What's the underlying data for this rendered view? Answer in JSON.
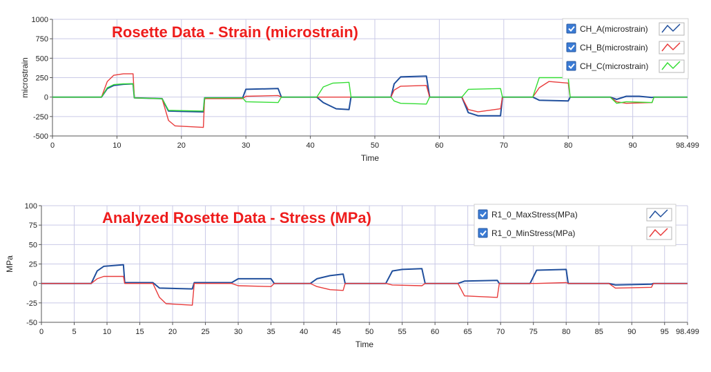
{
  "chart_data": [
    {
      "type": "line",
      "title": "Rosette Data -  Strain (microstrain)",
      "xlabel": "Time",
      "ylabel": "microstrain",
      "xlim": [
        0,
        98.499
      ],
      "ylim": [
        -500,
        1000
      ],
      "xticks": [
        "0",
        "10",
        "20",
        "30",
        "40",
        "50",
        "60",
        "70",
        "80",
        "90",
        "98.499"
      ],
      "xtick_values": [
        0,
        10,
        20,
        30,
        40,
        50,
        60,
        70,
        80,
        90,
        98.499
      ],
      "yticks": [
        "1000",
        "750",
        "500",
        "250",
        "0",
        "-250",
        "-500"
      ],
      "ytick_values": [
        1000,
        750,
        500,
        250,
        0,
        -250,
        -500
      ],
      "grid": true,
      "legend_position": "top-right",
      "series": [
        {
          "name": "CH_A(microstrain)",
          "color": "#1f4e9c",
          "checked": true,
          "x": [
            0,
            7.6,
            8.5,
            9.5,
            11,
            12.5,
            12.7,
            17,
            18,
            23.4,
            23.6,
            29.5,
            30,
            35,
            35.5,
            41,
            42,
            44,
            46,
            46.3,
            52.5,
            53,
            54,
            58,
            58.5,
            63.5,
            64.5,
            66,
            69.5,
            69.8,
            74.5,
            75.5,
            80,
            80.3,
            86.5,
            87.5,
            89,
            91,
            93,
            93.3,
            98.499
          ],
          "y": [
            0,
            0,
            110,
            150,
            165,
            170,
            -10,
            -20,
            -180,
            -190,
            -10,
            -10,
            100,
            110,
            0,
            0,
            -70,
            -150,
            -160,
            0,
            0,
            170,
            260,
            270,
            0,
            0,
            -200,
            -240,
            -240,
            0,
            0,
            -40,
            -50,
            0,
            0,
            -30,
            10,
            10,
            -5,
            0,
            0
          ]
        },
        {
          "name": "CH_B(microstrain)",
          "color": "#e83a3a",
          "checked": true,
          "x": [
            0,
            7.6,
            8.5,
            9.5,
            11,
            12.5,
            12.7,
            17,
            18,
            19,
            23.4,
            23.6,
            29.5,
            30,
            35,
            35.5,
            41,
            46,
            46.3,
            52.5,
            53,
            54,
            58,
            58.5,
            63.5,
            64.5,
            66,
            69.5,
            69.8,
            74.5,
            75.5,
            77,
            80,
            80.3,
            86.5,
            87.5,
            89,
            93,
            93.3,
            98.499
          ],
          "y": [
            0,
            0,
            200,
            280,
            300,
            300,
            -10,
            -20,
            -300,
            -370,
            -390,
            -20,
            -20,
            10,
            20,
            0,
            0,
            0,
            0,
            0,
            90,
            140,
            150,
            0,
            0,
            -160,
            -190,
            -150,
            0,
            0,
            120,
            200,
            180,
            0,
            0,
            -60,
            -80,
            -70,
            0,
            0
          ]
        },
        {
          "name": "CH_C(microstrain)",
          "color": "#33dd33",
          "checked": true,
          "x": [
            0,
            7.6,
            8.5,
            9.5,
            11,
            12.5,
            12.7,
            17,
            18,
            23.4,
            23.6,
            29.5,
            30,
            35,
            35.5,
            41,
            42,
            43.5,
            46,
            46.3,
            52.5,
            53,
            54,
            58,
            58.5,
            63.5,
            64.5,
            69.5,
            69.8,
            74.5,
            75.5,
            80,
            80.3,
            86.5,
            87.5,
            89,
            93,
            93.3,
            98.499
          ],
          "y": [
            0,
            0,
            120,
            160,
            170,
            170,
            -10,
            -20,
            -170,
            -180,
            -10,
            -10,
            -60,
            -70,
            0,
            0,
            130,
            180,
            190,
            0,
            0,
            -50,
            -80,
            -90,
            0,
            0,
            100,
            110,
            0,
            0,
            250,
            250,
            0,
            0,
            -80,
            -60,
            -70,
            0,
            0
          ]
        }
      ]
    },
    {
      "type": "line",
      "title": "Analyzed Rosette Data - Stress (MPa)",
      "xlabel": "Time",
      "ylabel": "MPa",
      "xlim": [
        0,
        98.499
      ],
      "ylim": [
        -50,
        100
      ],
      "xticks": [
        "0",
        "5",
        "10",
        "15",
        "20",
        "25",
        "30",
        "35",
        "40",
        "45",
        "50",
        "55",
        "60",
        "65",
        "70",
        "75",
        "80",
        "85",
        "90",
        "95",
        "98.499"
      ],
      "xtick_values": [
        0,
        5,
        10,
        15,
        20,
        25,
        30,
        35,
        40,
        45,
        50,
        55,
        60,
        65,
        70,
        75,
        80,
        85,
        90,
        95,
        98.499
      ],
      "yticks": [
        "100",
        "75",
        "50",
        "25",
        "0",
        "-25",
        "-50"
      ],
      "ytick_values": [
        100,
        75,
        50,
        25,
        0,
        -25,
        -50
      ],
      "grid": true,
      "legend_position": "top-right",
      "series": [
        {
          "name": "R1_0_MaxStress(MPa)",
          "color": "#1f4e9c",
          "checked": true,
          "x": [
            0,
            7.6,
            8.5,
            9.5,
            12.5,
            12.7,
            17,
            18,
            23,
            23.3,
            29,
            30,
            35,
            35.5,
            41,
            42,
            44,
            46,
            46.3,
            52.5,
            53.5,
            55,
            58,
            58.5,
            63.5,
            64.5,
            69.5,
            69.8,
            74.5,
            75.5,
            80,
            80.3,
            86.5,
            87.5,
            93,
            93.3,
            98.499
          ],
          "y": [
            0,
            0,
            16,
            22,
            24,
            1,
            1,
            -6,
            -7,
            1,
            1,
            6,
            6,
            0,
            0,
            6,
            10,
            12,
            0,
            0,
            16,
            18,
            19,
            0,
            0,
            3,
            4,
            0,
            0,
            17,
            18,
            0,
            0,
            -2,
            -1,
            0,
            0
          ]
        },
        {
          "name": "R1_0_MinStress(MPa)",
          "color": "#e83a3a",
          "checked": true,
          "x": [
            0,
            7.6,
            8.5,
            9.5,
            12.5,
            12.7,
            17,
            18,
            19,
            23,
            23.3,
            29,
            30,
            35,
            35.5,
            41,
            42,
            44,
            46,
            46.3,
            52.5,
            53.5,
            58,
            58.5,
            63.5,
            64.5,
            69.5,
            69.8,
            74.5,
            75.5,
            80,
            80.3,
            86.5,
            87.5,
            93,
            93.3,
            98.499
          ],
          "y": [
            0,
            0,
            6,
            9,
            9,
            0,
            0,
            -18,
            -26,
            -28,
            0,
            0,
            -3,
            -4,
            0,
            0,
            -4,
            -8,
            -9,
            0,
            0,
            -2,
            -3,
            0,
            0,
            -16,
            -18,
            0,
            0,
            0,
            1,
            0,
            0,
            -6,
            -5,
            0,
            0
          ]
        }
      ]
    }
  ]
}
